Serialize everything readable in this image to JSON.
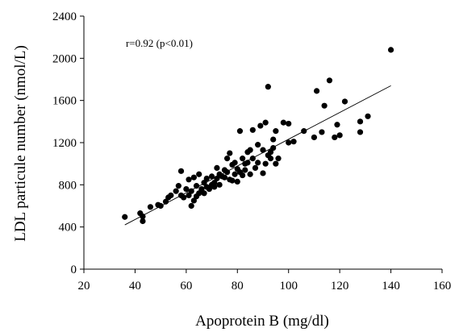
{
  "chart_data": {
    "type": "scatter",
    "xlabel": "Apoprotein B (mg/dl)",
    "ylabel": "LDL particule number (nmol/L)",
    "annotation": "r=0.92 (p<0.01)",
    "xlim": [
      20,
      160
    ],
    "ylim": [
      0,
      2400
    ],
    "xticks": [
      20,
      40,
      60,
      80,
      100,
      120,
      140,
      160
    ],
    "yticks": [
      0,
      400,
      800,
      1200,
      1600,
      2000,
      2400
    ],
    "xtick_labels": [
      "20",
      "40",
      "60",
      "80",
      "100",
      "120",
      "140",
      "160"
    ],
    "ytick_labels": [
      "0",
      "400",
      "800",
      "1200",
      "1600",
      "2000",
      "2400"
    ],
    "grid": false,
    "trendline": {
      "x": [
        36,
        140
      ],
      "y": [
        420,
        1740
      ]
    },
    "points": [
      [
        36,
        495
      ],
      [
        42,
        530
      ],
      [
        43,
        500
      ],
      [
        43,
        455
      ],
      [
        46,
        590
      ],
      [
        49,
        610
      ],
      [
        50,
        600
      ],
      [
        52,
        640
      ],
      [
        53,
        680
      ],
      [
        54,
        700
      ],
      [
        56,
        740
      ],
      [
        57,
        790
      ],
      [
        58,
        700
      ],
      [
        58,
        930
      ],
      [
        59,
        680
      ],
      [
        60,
        760
      ],
      [
        61,
        700
      ],
      [
        61,
        850
      ],
      [
        62,
        600
      ],
      [
        62,
        740
      ],
      [
        63,
        650
      ],
      [
        63,
        870
      ],
      [
        64,
        690
      ],
      [
        64,
        790
      ],
      [
        65,
        720
      ],
      [
        65,
        900
      ],
      [
        66,
        760
      ],
      [
        66,
        740
      ],
      [
        67,
        720
      ],
      [
        67,
        820
      ],
      [
        68,
        780
      ],
      [
        68,
        860
      ],
      [
        69,
        760
      ],
      [
        70,
        800
      ],
      [
        70,
        880
      ],
      [
        71,
        820
      ],
      [
        71,
        780
      ],
      [
        72,
        860
      ],
      [
        72,
        960
      ],
      [
        73,
        800
      ],
      [
        73,
        900
      ],
      [
        74,
        880
      ],
      [
        75,
        870
      ],
      [
        75,
        940
      ],
      [
        76,
        920
      ],
      [
        76,
        1050
      ],
      [
        77,
        850
      ],
      [
        77,
        1100
      ],
      [
        78,
        840
      ],
      [
        78,
        990
      ],
      [
        79,
        900
      ],
      [
        79,
        1010
      ],
      [
        80,
        830
      ],
      [
        80,
        950
      ],
      [
        81,
        920
      ],
      [
        81,
        1310
      ],
      [
        82,
        890
      ],
      [
        82,
        1050
      ],
      [
        83,
        1000
      ],
      [
        83,
        940
      ],
      [
        84,
        1110
      ],
      [
        84,
        1010
      ],
      [
        85,
        900
      ],
      [
        85,
        1130
      ],
      [
        86,
        1050
      ],
      [
        86,
        1320
      ],
      [
        87,
        960
      ],
      [
        88,
        1010
      ],
      [
        88,
        1180
      ],
      [
        89,
        1360
      ],
      [
        90,
        910
      ],
      [
        90,
        1130
      ],
      [
        91,
        1000
      ],
      [
        91,
        1390
      ],
      [
        92,
        1080
      ],
      [
        92,
        1730
      ],
      [
        93,
        1110
      ],
      [
        93,
        1050
      ],
      [
        94,
        1230
      ],
      [
        94,
        1150
      ],
      [
        95,
        1000
      ],
      [
        95,
        1310
      ],
      [
        96,
        1050
      ],
      [
        98,
        1390
      ],
      [
        100,
        1380
      ],
      [
        100,
        1200
      ],
      [
        102,
        1210
      ],
      [
        106,
        1310
      ],
      [
        110,
        1250
      ],
      [
        111,
        1690
      ],
      [
        113,
        1300
      ],
      [
        114,
        1550
      ],
      [
        116,
        1790
      ],
      [
        118,
        1250
      ],
      [
        119,
        1370
      ],
      [
        120,
        1270
      ],
      [
        122,
        1590
      ],
      [
        128,
        1300
      ],
      [
        128,
        1400
      ],
      [
        131,
        1450
      ],
      [
        140,
        2080
      ]
    ]
  }
}
